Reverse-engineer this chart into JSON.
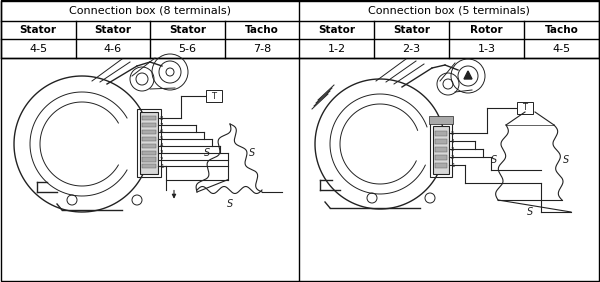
{
  "title_left": "Connection box (8 terminals)",
  "title_right": "Connection box (5 terminals)",
  "header_left": [
    "Stator",
    "Stator",
    "Stator",
    "Tacho"
  ],
  "header_right": [
    "Stator",
    "Stator",
    "Rotor",
    "Tacho"
  ],
  "values_left": [
    "4-5",
    "4-6",
    "5-6",
    "7-8"
  ],
  "values_right": [
    "1-2",
    "2-3",
    "1-3",
    "4-5"
  ],
  "bg_color": "#ffffff",
  "border_color": "#000000",
  "text_color": "#000000",
  "gray": "#333333",
  "light_gray": "#cccccc",
  "fig_width": 6.0,
  "fig_height": 2.82,
  "dpi": 100
}
